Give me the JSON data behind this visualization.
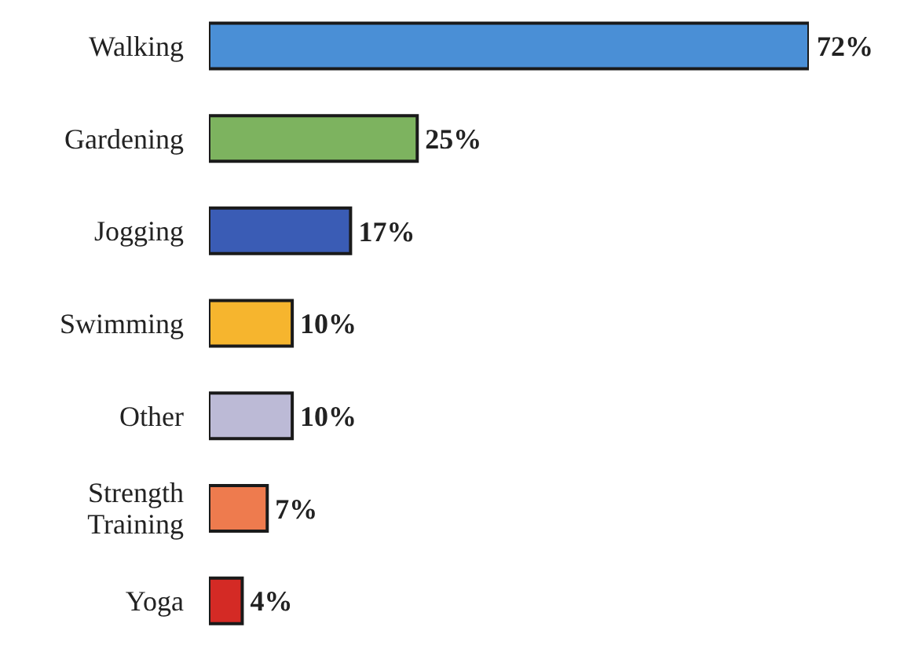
{
  "chart_data": {
    "type": "bar",
    "orientation": "horizontal",
    "categories": [
      "Walking",
      "Gardening",
      "Jogging",
      "Swimming",
      "Other",
      "Strength Training",
      "Yoga"
    ],
    "values": [
      72,
      25,
      17,
      10,
      10,
      7,
      4
    ],
    "colors": [
      "#4a8fd6",
      "#7db35f",
      "#3a5cb5",
      "#f6b52e",
      "#bcbad6",
      "#ee7b4e",
      "#d42a25"
    ],
    "value_labels": [
      "72%",
      "25%",
      "17%",
      "10%",
      "10%",
      "7%",
      "4%"
    ],
    "tick_labels": "y"
  }
}
